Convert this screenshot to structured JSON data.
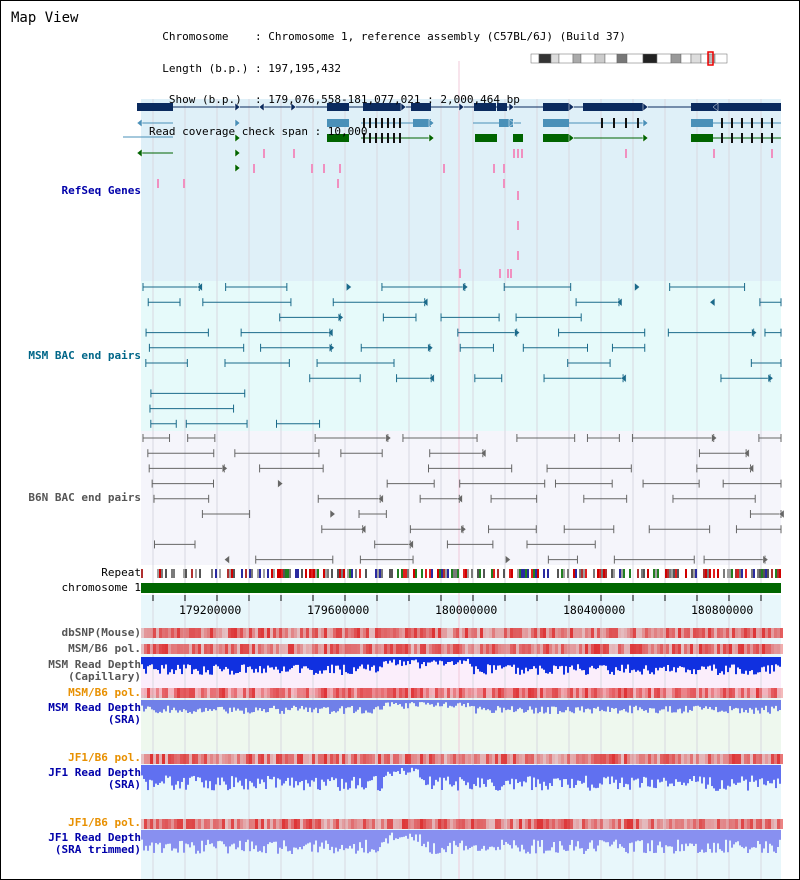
{
  "page": {
    "title": "Map View",
    "info_lines": [
      "  Chromosome    : Chromosome 1, reference assembly (C57BL/6J) (Build 37)",
      "  Length (b.p.) : 197,195,432",
      "   Show (b.p.)  : 179,076,558-181,077,021 : 2,000,464 bp",
      "Read coverage check span : 10,000"
    ]
  },
  "tracks": {
    "refseq": "RefSeq Genes",
    "msm_bac": "MSM BAC end pairs",
    "b6n_bac": "B6N BAC end pairs",
    "repeat": "Repeat",
    "chromosome": "chromosome 1",
    "dbsnp": "dbSNP(Mouse)",
    "msm_b6_pol_1": "MSM/B6 pol.",
    "msm_read_cap_1": "MSM Read Depth",
    "msm_read_cap_2": "(Capillary)",
    "msm_b6_pol_2": "MSM/B6 pol.",
    "msm_read_sra_1": "MSM Read Depth",
    "msm_read_sra_2": "(SRA)",
    "jf1_b6_pol_1": "JF1/B6 pol.",
    "jf1_read_sra_1": "JF1 Read Depth",
    "jf1_read_sra_2": "(SRA)",
    "jf1_b6_pol_2": "JF1/B6 pol.",
    "jf1_read_trim_1": "JF1 Read Depth",
    "jf1_read_trim_2": "(SRA trimmed)"
  },
  "axis": {
    "ticks": [
      "179200000",
      "179600000",
      "180000000",
      "180400000",
      "180800000"
    ]
  },
  "colors": {
    "refseq_label": "#0000aa",
    "msm_label": "#006688",
    "b6n_label": "#555555",
    "pol_label": "#e89000",
    "read_label": "#0000aa",
    "refseq_bg": "#dff0f8",
    "msm_bg": "#e6fafa",
    "b6n_bg": "#f5f5fb",
    "chromosome_bar": "#006600",
    "gene_navy": "#0a2a5e",
    "gene_teal": "#4a90b8",
    "gene_green": "#006400",
    "bac_msm": "#1a6a8a",
    "bac_b6n": "#666666"
  }
}
